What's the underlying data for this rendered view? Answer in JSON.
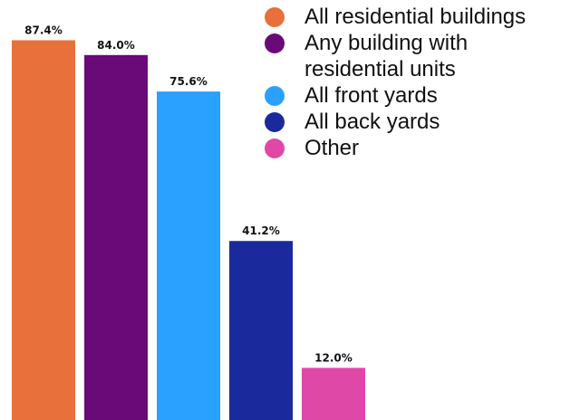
{
  "chart_data": {
    "type": "bar",
    "categories": [
      "All residential buildings",
      "Any building with residential units",
      "All front yards",
      "All back yards",
      "Other"
    ],
    "values": [
      87.4,
      84.0,
      75.6,
      41.2,
      12.0
    ],
    "value_labels": [
      "87.4%",
      "84.0%",
      "75.6%",
      "41.2%",
      "12.0%"
    ],
    "colors": [
      "#E8703A",
      "#6A0A78",
      "#2AA0FF",
      "#1A2A9C",
      "#E048A8"
    ],
    "title": "",
    "xlabel": "",
    "ylabel": "",
    "ylim": [
      0,
      100
    ],
    "grid": false,
    "legend_position": "top-right"
  },
  "legend": {
    "items": [
      {
        "label": "All residential buildings",
        "color": "#E8703A"
      },
      {
        "label": "Any building with residential units",
        "color": "#6A0A78"
      },
      {
        "label": "All front yards",
        "color": "#2AA0FF"
      },
      {
        "label": "All back yards",
        "color": "#1A2A9C"
      },
      {
        "label": "Other",
        "color": "#E048A8"
      }
    ]
  }
}
